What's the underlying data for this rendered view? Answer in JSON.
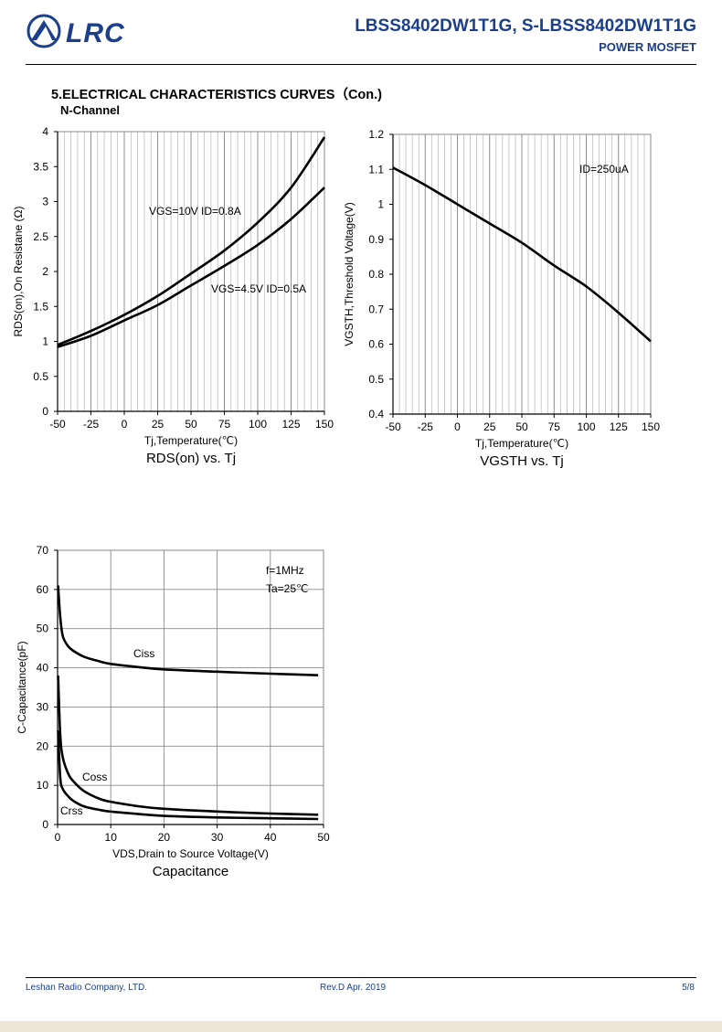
{
  "header": {
    "logo_text": "LRC",
    "part_number": "LBSS8402DW1T1G, S-LBSS8402DW1T1G",
    "subtitle": "POWER MOSFET",
    "brand_color": "#1c3f8c"
  },
  "section": {
    "title": "5.ELECTRICAL CHARACTERISTICS CURVES（Con.)",
    "channel": "N-Channel"
  },
  "footer": {
    "company": "Leshan Radio Company, LTD.",
    "revision": "Rev.D   Apr.   2019",
    "page": "5/8"
  },
  "chart_data": [
    {
      "type": "line",
      "title": "RDS(on) vs. Tj",
      "xlabel": "Tj,Temperature(℃)",
      "ylabel": "RDS(on),On Resistane (Ω)",
      "xlim": [
        -50,
        150
      ],
      "ylim": [
        0,
        4
      ],
      "xticks": [
        -50,
        -25,
        0,
        25,
        50,
        75,
        100,
        125,
        150
      ],
      "yticks": [
        0,
        0.5,
        1,
        1.5,
        2,
        2.5,
        3,
        3.5,
        4
      ],
      "ytick_labels": [
        "0",
        "0.5",
        "1",
        "1.5",
        "2",
        "2.5",
        "3",
        "3.5",
        "4"
      ],
      "grid": "vertical",
      "annotations": [
        "VGS=10V ID=0.8A",
        "VGS=4.5V ID=0.5A"
      ],
      "series": [
        {
          "name": "VGS=10V ID=0.8A",
          "x": [
            -50,
            -25,
            0,
            25,
            50,
            75,
            100,
            125,
            150
          ],
          "values": [
            0.95,
            1.15,
            1.38,
            1.65,
            1.97,
            2.3,
            2.7,
            3.2,
            3.92
          ]
        },
        {
          "name": "VGS=4.5V ID=0.5A",
          "x": [
            -50,
            -25,
            0,
            25,
            50,
            75,
            100,
            125,
            150
          ],
          "values": [
            0.92,
            1.08,
            1.3,
            1.52,
            1.8,
            2.08,
            2.38,
            2.75,
            3.2
          ]
        }
      ]
    },
    {
      "type": "line",
      "title": "VGSTH vs. Tj",
      "xlabel": "Tj,Temperature(℃)",
      "ylabel": "VGSTH,Threshold Voltage(V)",
      "xlim": [
        -50,
        150
      ],
      "ylim": [
        0.4,
        1.2
      ],
      "xticks": [
        -50,
        -25,
        0,
        25,
        50,
        75,
        100,
        125,
        150
      ],
      "yticks": [
        0.4,
        0.5,
        0.6,
        0.7,
        0.8,
        0.9,
        1,
        1.1,
        1.2
      ],
      "ytick_labels": [
        "0.4",
        "0.5",
        "0.6",
        "0.7",
        "0.8",
        "0.9",
        "1",
        "1.1",
        "1.2"
      ],
      "grid": "vertical",
      "annotations": [
        "ID=250uA"
      ],
      "series": [
        {
          "x": [
            -50,
            -25,
            0,
            25,
            50,
            75,
            100,
            125,
            150
          ],
          "values": [
            1.105,
            1.055,
            1.0,
            0.945,
            0.89,
            0.825,
            0.765,
            0.69,
            0.608
          ]
        }
      ]
    },
    {
      "type": "line",
      "title": "Capacitance",
      "xlabel": "VDS,Drain to Source Voltage(V)",
      "ylabel": "C-Capacitance(pF)",
      "xlim": [
        0,
        50
      ],
      "ylim": [
        0,
        70
      ],
      "xticks": [
        0,
        10,
        20,
        30,
        40,
        50
      ],
      "yticks": [
        0,
        10,
        20,
        30,
        40,
        50,
        60,
        70
      ],
      "grid": "both",
      "annotations": [
        "f=1MHz",
        "Ta=25℃"
      ],
      "series": [
        {
          "name": "Ciss",
          "x": [
            0.1,
            0.5,
            1,
            2,
            3,
            5,
            8,
            10,
            15,
            20,
            30,
            40,
            49
          ],
          "values": [
            61,
            53,
            48,
            45.5,
            44.3,
            42.8,
            41.6,
            41,
            40.2,
            39.6,
            39,
            38.5,
            38.1
          ]
        },
        {
          "name": "Coss",
          "x": [
            0.1,
            0.5,
            1,
            2,
            3,
            5,
            8,
            10,
            15,
            20,
            30,
            40,
            49
          ],
          "values": [
            38,
            23,
            17,
            13,
            11,
            8.5,
            6.5,
            5.8,
            4.7,
            4,
            3.3,
            2.8,
            2.5
          ]
        },
        {
          "name": "Crss",
          "x": [
            0.1,
            0.5,
            1,
            2,
            3,
            5,
            8,
            10,
            15,
            20,
            30,
            40,
            49
          ],
          "values": [
            24,
            12,
            9,
            7.2,
            6,
            4.6,
            3.7,
            3.3,
            2.7,
            2.2,
            1.8,
            1.6,
            1.4
          ]
        }
      ]
    }
  ]
}
